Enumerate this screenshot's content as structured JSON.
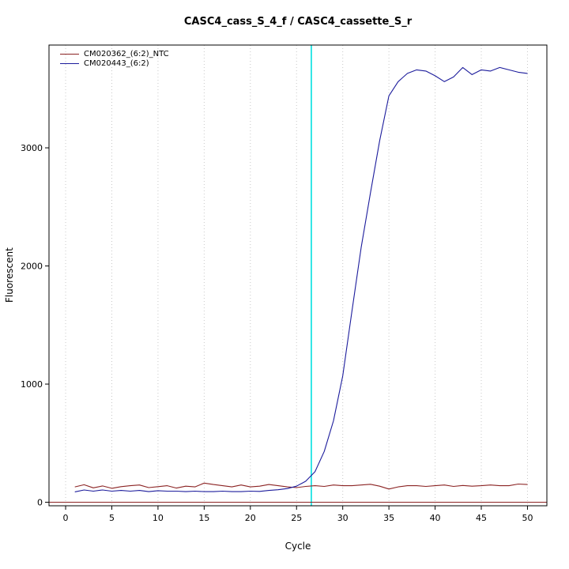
{
  "chart_data": {
    "type": "line",
    "title": "CASC4_cass_S_4_f / CASC4_cassette_S_r",
    "xlabel": "Cycle",
    "ylabel": "Fluorescent",
    "xlim": [
      -1.8,
      52.1
    ],
    "ylim": [
      -30,
      3870
    ],
    "x_ticks": [
      0,
      5,
      10,
      15,
      20,
      25,
      30,
      35,
      40,
      45,
      50
    ],
    "y_ticks": [
      0,
      1000,
      2000,
      3000
    ],
    "grid": "vertical dotted lines at x ticks",
    "grid_color": "#c8c8c8",
    "legend_position": "top-left",
    "axis_color": "#000000",
    "background": "#ffffff",
    "threshold_line": {
      "y": 0,
      "color": "#8b2323"
    },
    "ct_marker": {
      "x": 26.6,
      "color": "#00e0e0"
    },
    "x": [
      1,
      2,
      3,
      4,
      5,
      6,
      7,
      8,
      9,
      10,
      11,
      12,
      13,
      14,
      15,
      16,
      17,
      18,
      19,
      20,
      21,
      22,
      23,
      24,
      25,
      26,
      27,
      28,
      29,
      30,
      31,
      32,
      33,
      34,
      35,
      36,
      37,
      38,
      39,
      40,
      41,
      42,
      43,
      44,
      45,
      46,
      47,
      48,
      49,
      50
    ],
    "series": [
      {
        "name": "CM020362_(6:2)_NTC",
        "color": "#8b2323",
        "values": [
          130,
          148,
          122,
          138,
          118,
          132,
          140,
          146,
          124,
          132,
          140,
          120,
          136,
          130,
          162,
          150,
          140,
          130,
          146,
          130,
          136,
          150,
          140,
          130,
          124,
          134,
          140,
          134,
          146,
          140,
          140,
          146,
          152,
          136,
          112,
          130,
          140,
          140,
          134,
          140,
          146,
          134,
          142,
          136,
          140,
          146,
          140,
          140,
          154,
          150
        ]
      },
      {
        "name": "CM020443_(6:2)",
        "color": "#1c1c9c",
        "values": [
          88,
          104,
          94,
          104,
          94,
          100,
          94,
          100,
          90,
          98,
          94,
          94,
          90,
          94,
          90,
          90,
          94,
          90,
          90,
          94,
          92,
          100,
          106,
          116,
          136,
          178,
          258,
          430,
          690,
          1070,
          1620,
          2160,
          2620,
          3060,
          3440,
          3560,
          3630,
          3660,
          3650,
          3610,
          3560,
          3600,
          3680,
          3620,
          3660,
          3650,
          3680,
          3660,
          3640,
          3630
        ]
      }
    ]
  }
}
